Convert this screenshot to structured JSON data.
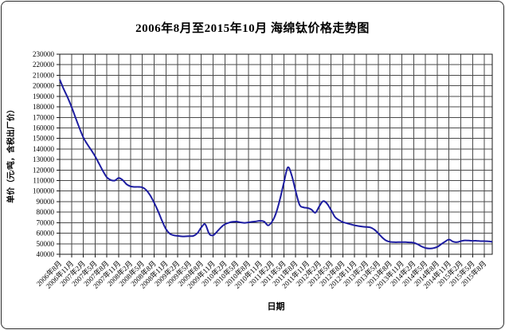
{
  "chart_data": {
    "type": "line",
    "title": "2006年8月至2015年10月 海绵钛价格走势图",
    "xlabel": "日期",
    "ylabel": "单价（元/吨，含税出厂价）",
    "ylim": [
      40000,
      230000
    ],
    "ytick_step": 10000,
    "grid": true,
    "legend_position": "none",
    "line_color": "#1c1ca0",
    "grid_color": "#4a4a4a",
    "frame_color": "#1a1a1a",
    "x_tick_interval_months": 3,
    "x_tick_labels": [
      "2006年8月",
      "2006年11月",
      "2007年2月",
      "2007年5月",
      "2007年8月",
      "2007年11月",
      "2008年2月",
      "2008年5月",
      "2008年8月",
      "2008年11月",
      "2009年2月",
      "2009年5月",
      "2009年8月",
      "2009年11月",
      "2010年2月",
      "2010年5月",
      "2010年8月",
      "2010年11月",
      "2011年2月",
      "2011年5月",
      "2011年8月",
      "2011年11月",
      "2012年2月",
      "2012年5月",
      "2012年8月",
      "2012年11月",
      "2013年2月",
      "2013年5月",
      "2013年8月",
      "2013年11月",
      "2014年2月",
      "2014年5月",
      "2014年8月",
      "2014年11月",
      "2015年2月",
      "2015年5月",
      "2015年8月"
    ],
    "series": [
      {
        "name": "海绵钛价格",
        "frequency": "monthly",
        "start_month": "2006年8月",
        "end_month": "2015年10月",
        "values": [
          206000,
          197000,
          189000,
          180000,
          170000,
          160000,
          151000,
          144500,
          139000,
          133000,
          126000,
          119000,
          113000,
          110500,
          110000,
          112500,
          110500,
          106500,
          104500,
          104000,
          104000,
          103500,
          101000,
          96000,
          89000,
          81000,
          72000,
          64000,
          59500,
          58000,
          57500,
          57000,
          57000,
          57200,
          57500,
          60000,
          65500,
          68500,
          59500,
          58000,
          61500,
          65500,
          68500,
          70000,
          70800,
          71000,
          70300,
          69800,
          70300,
          70800,
          71300,
          71800,
          71000,
          67500,
          71000,
          79000,
          92000,
          108000,
          122500,
          115000,
          100000,
          87000,
          84500,
          84000,
          82500,
          79500,
          85500,
          90500,
          88000,
          82000,
          75500,
          72500,
          70500,
          69500,
          68500,
          67500,
          66800,
          66300,
          66000,
          65500,
          63500,
          60000,
          56000,
          53000,
          51800,
          51500,
          51500,
          51500,
          51500,
          51300,
          51000,
          49500,
          47500,
          46000,
          45500,
          45800,
          47000,
          49500,
          52000,
          54000,
          52000,
          51500,
          52500,
          53200,
          53000,
          52800,
          52800,
          52500,
          52500,
          52300,
          51800
        ]
      }
    ]
  }
}
